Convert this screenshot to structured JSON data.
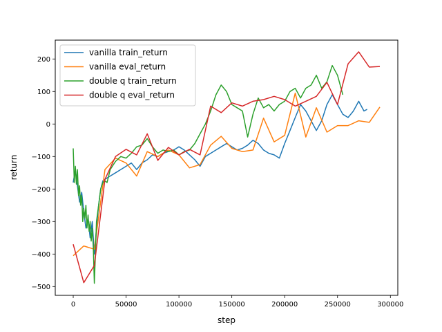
{
  "chart_data": {
    "type": "line",
    "title": "",
    "xlabel": "step",
    "ylabel": "return",
    "xlim": [
      -17000,
      307000
    ],
    "ylim": [
      -527,
      258
    ],
    "xticks": [
      {
        "value": 0,
        "label": "0"
      },
      {
        "value": 50000,
        "label": "50000"
      },
      {
        "value": 100000,
        "label": "100000"
      },
      {
        "value": 150000,
        "label": "150000"
      },
      {
        "value": 200000,
        "label": "200000"
      },
      {
        "value": 250000,
        "label": "250000"
      },
      {
        "value": 300000,
        "label": "300000"
      }
    ],
    "yticks": [
      {
        "value": -500,
        "label": "−500"
      },
      {
        "value": -400,
        "label": "−400"
      },
      {
        "value": -300,
        "label": "−300"
      },
      {
        "value": -200,
        "label": "−200"
      },
      {
        "value": -100,
        "label": "−100"
      },
      {
        "value": 0,
        "label": "0"
      },
      {
        "value": 100,
        "label": "100"
      },
      {
        "value": 200,
        "label": "200"
      }
    ],
    "grid": false,
    "legend_position": "top-left",
    "series": [
      {
        "name": "vanilla train_return",
        "color": "#1f77b4",
        "points": [
          [
            0,
            -180
          ],
          [
            2000,
            -140
          ],
          [
            4000,
            -190
          ],
          [
            6000,
            -240
          ],
          [
            8000,
            -210
          ],
          [
            10000,
            -270
          ],
          [
            12000,
            -320
          ],
          [
            14000,
            -290
          ],
          [
            16000,
            -350
          ],
          [
            18000,
            -300
          ],
          [
            20000,
            -400
          ],
          [
            22000,
            -320
          ],
          [
            24000,
            -250
          ],
          [
            26000,
            -200
          ],
          [
            28000,
            -175
          ],
          [
            30000,
            -170
          ],
          [
            35000,
            -160
          ],
          [
            40000,
            -150
          ],
          [
            45000,
            -140
          ],
          [
            50000,
            -130
          ],
          [
            55000,
            -120
          ],
          [
            60000,
            -140
          ],
          [
            65000,
            -120
          ],
          [
            70000,
            -110
          ],
          [
            75000,
            -95
          ],
          [
            80000,
            -100
          ],
          [
            85000,
            -90
          ],
          [
            90000,
            -85
          ],
          [
            95000,
            -80
          ],
          [
            100000,
            -70
          ],
          [
            105000,
            -80
          ],
          [
            110000,
            -95
          ],
          [
            115000,
            -110
          ],
          [
            120000,
            -130
          ],
          [
            125000,
            -100
          ],
          [
            130000,
            -90
          ],
          [
            135000,
            -80
          ],
          [
            140000,
            -70
          ],
          [
            145000,
            -60
          ],
          [
            150000,
            -70
          ],
          [
            155000,
            -80
          ],
          [
            160000,
            -75
          ],
          [
            165000,
            -65
          ],
          [
            170000,
            -50
          ],
          [
            175000,
            -60
          ],
          [
            180000,
            -80
          ],
          [
            185000,
            -90
          ],
          [
            190000,
            -95
          ],
          [
            195000,
            -105
          ],
          [
            200000,
            -60
          ],
          [
            205000,
            -20
          ],
          [
            210000,
            20
          ],
          [
            215000,
            60
          ],
          [
            220000,
            40
          ],
          [
            225000,
            10
          ],
          [
            230000,
            -20
          ],
          [
            235000,
            10
          ],
          [
            240000,
            60
          ],
          [
            245000,
            90
          ],
          [
            250000,
            60
          ],
          [
            255000,
            30
          ],
          [
            260000,
            20
          ],
          [
            265000,
            40
          ],
          [
            270000,
            70
          ],
          [
            275000,
            40
          ],
          [
            278000,
            45
          ]
        ]
      },
      {
        "name": "vanilla eval_return",
        "color": "#ff7f0e",
        "points": [
          [
            0,
            -405
          ],
          [
            10000,
            -375
          ],
          [
            20000,
            -385
          ],
          [
            30000,
            -140
          ],
          [
            40000,
            -105
          ],
          [
            50000,
            -120
          ],
          [
            60000,
            -160
          ],
          [
            70000,
            -85
          ],
          [
            80000,
            -100
          ],
          [
            90000,
            -80
          ],
          [
            100000,
            -95
          ],
          [
            110000,
            -135
          ],
          [
            120000,
            -125
          ],
          [
            130000,
            -65
          ],
          [
            140000,
            -38
          ],
          [
            150000,
            -75
          ],
          [
            160000,
            -85
          ],
          [
            170000,
            -80
          ],
          [
            180000,
            18
          ],
          [
            190000,
            -55
          ],
          [
            200000,
            -35
          ],
          [
            210000,
            95
          ],
          [
            220000,
            -40
          ],
          [
            230000,
            50
          ],
          [
            240000,
            -25
          ],
          [
            250000,
            -5
          ],
          [
            260000,
            -5
          ],
          [
            270000,
            10
          ],
          [
            280000,
            5
          ],
          [
            290000,
            52
          ]
        ]
      },
      {
        "name": "double q train_return",
        "color": "#2ca02c",
        "points": [
          [
            0,
            -75
          ],
          [
            1000,
            -180
          ],
          [
            2000,
            -130
          ],
          [
            3000,
            -185
          ],
          [
            4000,
            -140
          ],
          [
            5000,
            -220
          ],
          [
            6000,
            -190
          ],
          [
            7000,
            -250
          ],
          [
            8000,
            -220
          ],
          [
            9000,
            -300
          ],
          [
            10000,
            -260
          ],
          [
            11000,
            -290
          ],
          [
            12000,
            -250
          ],
          [
            13000,
            -320
          ],
          [
            14000,
            -280
          ],
          [
            15000,
            -330
          ],
          [
            16000,
            -300
          ],
          [
            17000,
            -360
          ],
          [
            18000,
            -320
          ],
          [
            19000,
            -380
          ],
          [
            20000,
            -490
          ],
          [
            21000,
            -400
          ],
          [
            22000,
            -300
          ],
          [
            24000,
            -250
          ],
          [
            26000,
            -200
          ],
          [
            28000,
            -180
          ],
          [
            30000,
            -175
          ],
          [
            32000,
            -180
          ],
          [
            35000,
            -140
          ],
          [
            40000,
            -115
          ],
          [
            45000,
            -100
          ],
          [
            50000,
            -105
          ],
          [
            55000,
            -90
          ],
          [
            60000,
            -70
          ],
          [
            65000,
            -65
          ],
          [
            70000,
            -45
          ],
          [
            75000,
            -70
          ],
          [
            80000,
            -90
          ],
          [
            85000,
            -80
          ],
          [
            90000,
            -85
          ],
          [
            95000,
            -80
          ],
          [
            100000,
            -95
          ],
          [
            105000,
            -85
          ],
          [
            110000,
            -80
          ],
          [
            115000,
            -60
          ],
          [
            120000,
            -30
          ],
          [
            125000,
            0
          ],
          [
            130000,
            40
          ],
          [
            135000,
            90
          ],
          [
            140000,
            120
          ],
          [
            145000,
            100
          ],
          [
            150000,
            60
          ],
          [
            155000,
            50
          ],
          [
            160000,
            40
          ],
          [
            165000,
            -40
          ],
          [
            170000,
            30
          ],
          [
            175000,
            80
          ],
          [
            180000,
            50
          ],
          [
            185000,
            60
          ],
          [
            190000,
            40
          ],
          [
            195000,
            60
          ],
          [
            200000,
            70
          ],
          [
            205000,
            100
          ],
          [
            210000,
            110
          ],
          [
            215000,
            80
          ],
          [
            220000,
            110
          ],
          [
            225000,
            120
          ],
          [
            230000,
            150
          ],
          [
            235000,
            110
          ],
          [
            240000,
            130
          ],
          [
            245000,
            180
          ],
          [
            250000,
            150
          ],
          [
            255000,
            90
          ]
        ]
      },
      {
        "name": "double q eval_return",
        "color": "#d62728",
        "points": [
          [
            0,
            -370
          ],
          [
            10000,
            -488
          ],
          [
            20000,
            -435
          ],
          [
            30000,
            -170
          ],
          [
            40000,
            -100
          ],
          [
            50000,
            -78
          ],
          [
            60000,
            -95
          ],
          [
            70000,
            -30
          ],
          [
            80000,
            -112
          ],
          [
            90000,
            -72
          ],
          [
            100000,
            -95
          ],
          [
            110000,
            -78
          ],
          [
            120000,
            -95
          ],
          [
            130000,
            55
          ],
          [
            140000,
            35
          ],
          [
            150000,
            65
          ],
          [
            160000,
            55
          ],
          [
            170000,
            70
          ],
          [
            180000,
            75
          ],
          [
            190000,
            85
          ],
          [
            200000,
            75
          ],
          [
            210000,
            55
          ],
          [
            220000,
            70
          ],
          [
            230000,
            85
          ],
          [
            240000,
            128
          ],
          [
            250000,
            60
          ],
          [
            260000,
            185
          ],
          [
            270000,
            222
          ],
          [
            280000,
            175
          ],
          [
            290000,
            177
          ]
        ]
      }
    ]
  }
}
